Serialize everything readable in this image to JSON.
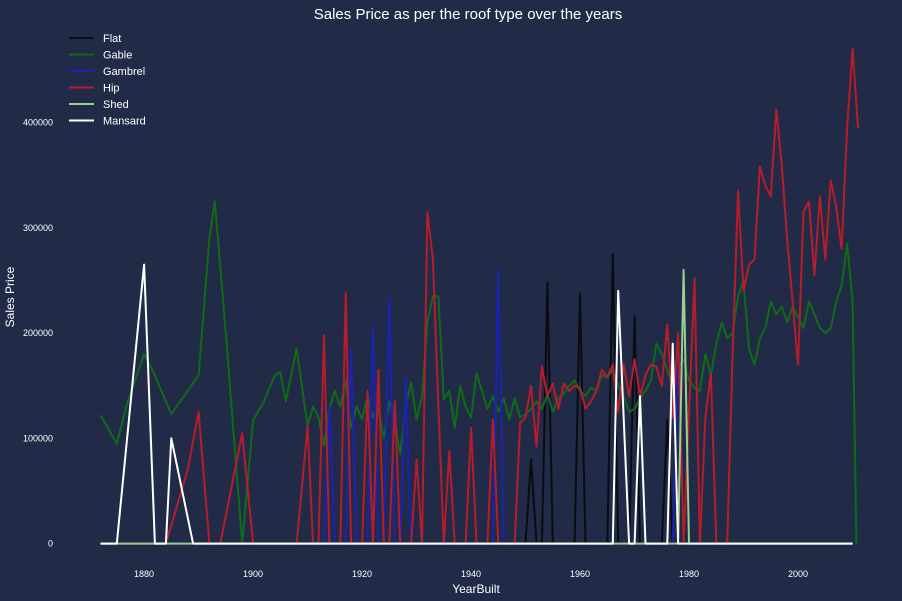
{
  "chart_data": {
    "type": "line",
    "title": "Sales Price as per the roof type over the years",
    "xlabel": "YearBuilt",
    "ylabel": "Sales Price",
    "xlim": [
      1871,
      2011
    ],
    "ylim": [
      -8000,
      486000
    ],
    "x_ticks": [
      1880,
      1900,
      1920,
      1940,
      1960,
      1980,
      2000
    ],
    "y_ticks": [
      0,
      100000,
      200000,
      300000,
      400000
    ],
    "grid": false,
    "legend_position": "top-left",
    "series": [
      {
        "name": "Flat",
        "color": "#0b0c10",
        "points": [
          [
            1872,
            0
          ],
          [
            1950,
            0
          ],
          [
            1951,
            80000
          ],
          [
            1952,
            0
          ],
          [
            1953,
            0
          ],
          [
            1954,
            248000
          ],
          [
            1955,
            0
          ],
          [
            1959,
            0
          ],
          [
            1960,
            238000
          ],
          [
            1961,
            0
          ],
          [
            1965,
            0
          ],
          [
            1966,
            275000
          ],
          [
            1967,
            0
          ],
          [
            1969,
            0
          ],
          [
            1970,
            216000
          ],
          [
            1971,
            0
          ],
          [
            1975,
            0
          ],
          [
            1976,
            118000
          ],
          [
            1977,
            0
          ],
          [
            2010,
            0
          ]
        ]
      },
      {
        "name": "Gable",
        "color": "#0f6b16",
        "points": [
          [
            1872,
            122000
          ],
          [
            1875,
            95000
          ],
          [
            1877,
            135000
          ],
          [
            1880,
            180000
          ],
          [
            1882,
            160000
          ],
          [
            1885,
            123000
          ],
          [
            1888,
            145000
          ],
          [
            1890,
            160000
          ],
          [
            1892,
            290000
          ],
          [
            1893,
            325000
          ],
          [
            1895,
            200000
          ],
          [
            1898,
            0
          ],
          [
            1900,
            117000
          ],
          [
            1902,
            135000
          ],
          [
            1904,
            160000
          ],
          [
            1905,
            163000
          ],
          [
            1906,
            135000
          ],
          [
            1908,
            185000
          ],
          [
            1910,
            112000
          ],
          [
            1911,
            130000
          ],
          [
            1912,
            120000
          ],
          [
            1913,
            93000
          ],
          [
            1914,
            128000
          ],
          [
            1915,
            145000
          ],
          [
            1916,
            130000
          ],
          [
            1917,
            155000
          ],
          [
            1918,
            110000
          ],
          [
            1919,
            130000
          ],
          [
            1920,
            118000
          ],
          [
            1921,
            140000
          ],
          [
            1922,
            120000
          ],
          [
            1923,
            128000
          ],
          [
            1924,
            100000
          ],
          [
            1925,
            135000
          ],
          [
            1926,
            118000
          ],
          [
            1927,
            85000
          ],
          [
            1928,
            130000
          ],
          [
            1929,
            153000
          ],
          [
            1930,
            118000
          ],
          [
            1931,
            140000
          ],
          [
            1932,
            210000
          ],
          [
            1933,
            235000
          ],
          [
            1934,
            235000
          ],
          [
            1935,
            137000
          ],
          [
            1936,
            145000
          ],
          [
            1937,
            110000
          ],
          [
            1938,
            150000
          ],
          [
            1939,
            130000
          ],
          [
            1940,
            120000
          ],
          [
            1941,
            162000
          ],
          [
            1942,
            145000
          ],
          [
            1943,
            128000
          ],
          [
            1944,
            140000
          ],
          [
            1945,
            125000
          ],
          [
            1946,
            138000
          ],
          [
            1947,
            118000
          ],
          [
            1948,
            138000
          ],
          [
            1949,
            120000
          ],
          [
            1950,
            123000
          ],
          [
            1951,
            128000
          ],
          [
            1952,
            135000
          ],
          [
            1953,
            128000
          ],
          [
            1954,
            142000
          ],
          [
            1955,
            125000
          ],
          [
            1956,
            138000
          ],
          [
            1957,
            142000
          ],
          [
            1958,
            150000
          ],
          [
            1959,
            155000
          ],
          [
            1960,
            145000
          ],
          [
            1961,
            140000
          ],
          [
            1962,
            148000
          ],
          [
            1963,
            145000
          ],
          [
            1964,
            160000
          ],
          [
            1965,
            158000
          ],
          [
            1966,
            165000
          ],
          [
            1967,
            150000
          ],
          [
            1968,
            140000
          ],
          [
            1969,
            125000
          ],
          [
            1970,
            128000
          ],
          [
            1971,
            138000
          ],
          [
            1972,
            145000
          ],
          [
            1973,
            155000
          ],
          [
            1974,
            190000
          ],
          [
            1975,
            180000
          ],
          [
            1976,
            165000
          ],
          [
            1977,
            148000
          ],
          [
            1978,
            168000
          ],
          [
            1979,
            175000
          ],
          [
            1980,
            155000
          ],
          [
            1981,
            148000
          ],
          [
            1982,
            145000
          ],
          [
            1983,
            180000
          ],
          [
            1984,
            160000
          ],
          [
            1985,
            190000
          ],
          [
            1986,
            210000
          ],
          [
            1987,
            195000
          ],
          [
            1988,
            200000
          ],
          [
            1989,
            235000
          ],
          [
            1990,
            250000
          ],
          [
            1991,
            185000
          ],
          [
            1992,
            170000
          ],
          [
            1993,
            195000
          ],
          [
            1994,
            205000
          ],
          [
            1995,
            230000
          ],
          [
            1996,
            218000
          ],
          [
            1997,
            225000
          ],
          [
            1998,
            210000
          ],
          [
            1999,
            225000
          ],
          [
            2000,
            215000
          ],
          [
            2001,
            205000
          ],
          [
            2002,
            230000
          ],
          [
            2003,
            218000
          ],
          [
            2004,
            205000
          ],
          [
            2005,
            200000
          ],
          [
            2006,
            205000
          ],
          [
            2007,
            230000
          ],
          [
            2008,
            245000
          ],
          [
            2009,
            285000
          ],
          [
            2010,
            230000
          ],
          [
            2010.7,
            0
          ]
        ]
      },
      {
        "name": "Gambrel",
        "color": "#1a22b3",
        "points": [
          [
            1872,
            0
          ],
          [
            1913,
            0
          ],
          [
            1914,
            130000
          ],
          [
            1915,
            0
          ],
          [
            1917,
            0
          ],
          [
            1918,
            185000
          ],
          [
            1919,
            0
          ],
          [
            1921,
            0
          ],
          [
            1922,
            205000
          ],
          [
            1923,
            0
          ],
          [
            1924,
            0
          ],
          [
            1925,
            233000
          ],
          [
            1926,
            0
          ],
          [
            1927,
            0
          ],
          [
            1928,
            157000
          ],
          [
            1929,
            0
          ],
          [
            1944,
            0
          ],
          [
            1945,
            260000
          ],
          [
            1946,
            0
          ],
          [
            1977,
            0
          ],
          [
            1978,
            185000
          ],
          [
            1979,
            0
          ],
          [
            2010,
            0
          ]
        ]
      },
      {
        "name": "Hip",
        "color": "#b51d2a",
        "points": [
          [
            1872,
            0
          ],
          [
            1884,
            0
          ],
          [
            1888,
            70000
          ],
          [
            1890,
            125000
          ],
          [
            1892,
            0
          ],
          [
            1894,
            0
          ],
          [
            1898,
            105000
          ],
          [
            1900,
            0
          ],
          [
            1908,
            0
          ],
          [
            1910,
            112000
          ],
          [
            1911,
            0
          ],
          [
            1912,
            0
          ],
          [
            1913,
            198000
          ],
          [
            1914,
            0
          ],
          [
            1916,
            0
          ],
          [
            1917,
            238000
          ],
          [
            1918,
            0
          ],
          [
            1920,
            0
          ],
          [
            1921,
            145000
          ],
          [
            1922,
            0
          ],
          [
            1923,
            165000
          ],
          [
            1924,
            0
          ],
          [
            1925,
            0
          ],
          [
            1926,
            135000
          ],
          [
            1927,
            0
          ],
          [
            1929,
            0
          ],
          [
            1930,
            80000
          ],
          [
            1931,
            0
          ],
          [
            1932,
            315000
          ],
          [
            1933,
            270000
          ],
          [
            1934,
            130000
          ],
          [
            1935,
            0
          ],
          [
            1936,
            88000
          ],
          [
            1937,
            0
          ],
          [
            1939,
            0
          ],
          [
            1940,
            110000
          ],
          [
            1941,
            0
          ],
          [
            1943,
            0
          ],
          [
            1944,
            118000
          ],
          [
            1945,
            0
          ],
          [
            1948,
            0
          ],
          [
            1949,
            115000
          ],
          [
            1950,
            120000
          ],
          [
            1951,
            150000
          ],
          [
            1952,
            92000
          ],
          [
            1953,
            168000
          ],
          [
            1954,
            140000
          ],
          [
            1955,
            152000
          ],
          [
            1956,
            128000
          ],
          [
            1957,
            152000
          ],
          [
            1958,
            145000
          ],
          [
            1959,
            150000
          ],
          [
            1960,
            148000
          ],
          [
            1961,
            128000
          ],
          [
            1962,
            135000
          ],
          [
            1963,
            145000
          ],
          [
            1964,
            165000
          ],
          [
            1965,
            158000
          ],
          [
            1966,
            170000
          ],
          [
            1967,
            125000
          ],
          [
            1968,
            170000
          ],
          [
            1969,
            140000
          ],
          [
            1970,
            175000
          ],
          [
            1971,
            140000
          ],
          [
            1972,
            160000
          ],
          [
            1973,
            170000
          ],
          [
            1974,
            168000
          ],
          [
            1975,
            150000
          ],
          [
            1976,
            208000
          ],
          [
            1977,
            120000
          ],
          [
            1978,
            200000
          ],
          [
            1979,
            0
          ],
          [
            1981,
            252000
          ],
          [
            1982,
            0
          ],
          [
            1983,
            120000
          ],
          [
            1984,
            162000
          ],
          [
            1985,
            0
          ],
          [
            1987,
            0
          ],
          [
            1988,
            180000
          ],
          [
            1989,
            335000
          ],
          [
            1990,
            240000
          ],
          [
            1991,
            265000
          ],
          [
            1992,
            270000
          ],
          [
            1993,
            358000
          ],
          [
            1994,
            340000
          ],
          [
            1995,
            330000
          ],
          [
            1996,
            412000
          ],
          [
            1997,
            360000
          ],
          [
            1998,
            290000
          ],
          [
            1999,
            230000
          ],
          [
            2000,
            170000
          ],
          [
            2001,
            315000
          ],
          [
            2002,
            325000
          ],
          [
            2003,
            255000
          ],
          [
            2004,
            330000
          ],
          [
            2005,
            270000
          ],
          [
            2006,
            345000
          ],
          [
            2007,
            320000
          ],
          [
            2008,
            280000
          ],
          [
            2009,
            395000
          ],
          [
            2010,
            470000
          ],
          [
            2011,
            395000
          ]
        ]
      },
      {
        "name": "Shed",
        "color": "#9ad08f",
        "points": [
          [
            1872,
            0
          ],
          [
            1978,
            0
          ],
          [
            1979,
            260000
          ],
          [
            1980,
            0
          ],
          [
            2010,
            0
          ]
        ]
      },
      {
        "name": "Mansard",
        "color": "#ffffff",
        "points": [
          [
            1872,
            0
          ],
          [
            1875,
            0
          ],
          [
            1880,
            265000
          ],
          [
            1882,
            0
          ],
          [
            1884,
            0
          ],
          [
            1885,
            100000
          ],
          [
            1889,
            0
          ],
          [
            1966,
            0
          ],
          [
            1967,
            240000
          ],
          [
            1969,
            0
          ],
          [
            1970,
            0
          ],
          [
            1971,
            140000
          ],
          [
            1972,
            0
          ],
          [
            1976,
            0
          ],
          [
            1977,
            190000
          ],
          [
            1978,
            0
          ],
          [
            2010,
            0
          ]
        ]
      }
    ]
  }
}
